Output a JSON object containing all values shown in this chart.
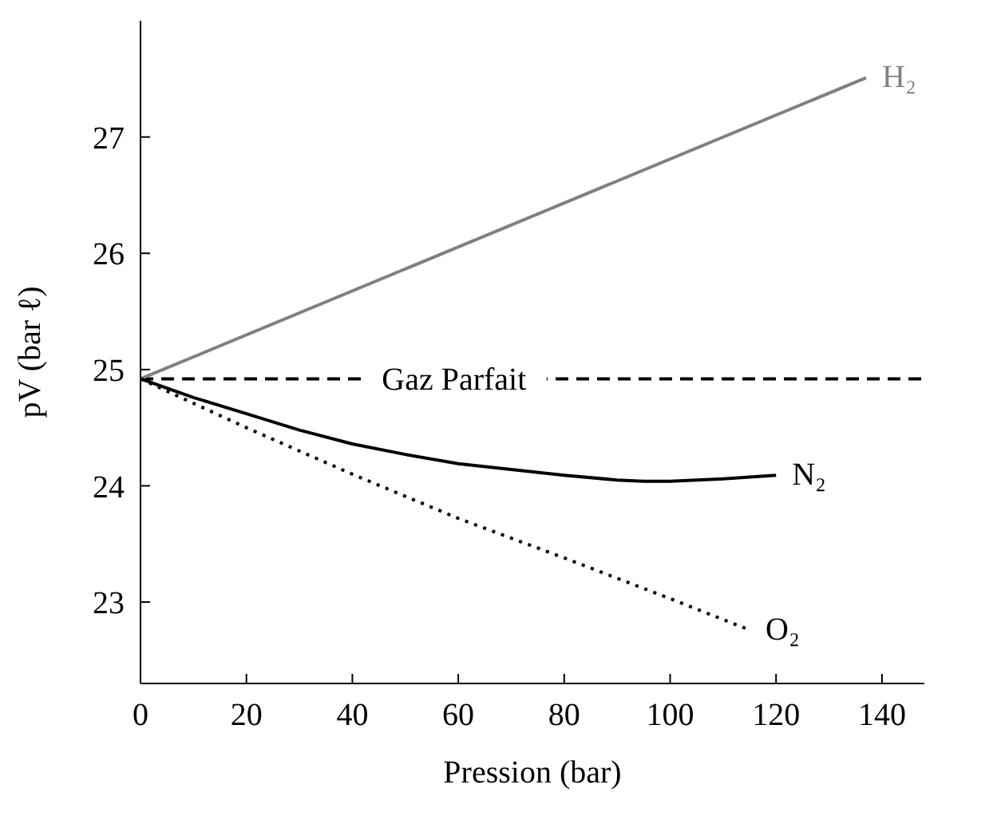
{
  "chart_data": {
    "type": "line",
    "xlabel": "Pression (bar)",
    "ylabel": "pV (bar ℓ)",
    "xlim": [
      0,
      148
    ],
    "ylim": [
      22.3,
      28
    ],
    "xticks": [
      0,
      20,
      40,
      60,
      80,
      100,
      120,
      140
    ],
    "yticks": [
      23,
      24,
      25,
      26,
      27
    ],
    "ref_lines": [
      {
        "axis": "y",
        "value": 24.92,
        "label": "Gaz Parfait",
        "color": "#000000",
        "line_style": "dashed"
      }
    ],
    "series": [
      {
        "name": "H₂",
        "color": "#808080",
        "line_style": "solid",
        "x": [
          0,
          137
        ],
        "values": [
          24.92,
          27.51
        ]
      },
      {
        "name": "N₂",
        "color": "#000000",
        "line_style": "solid",
        "x": [
          0,
          10,
          20,
          30,
          40,
          50,
          60,
          70,
          80,
          90,
          95,
          100,
          110,
          120
        ],
        "values": [
          24.92,
          24.76,
          24.62,
          24.48,
          24.36,
          24.27,
          24.19,
          24.14,
          24.09,
          24.05,
          24.04,
          24.04,
          24.06,
          24.09
        ]
      },
      {
        "name": "O₂",
        "color": "#000000",
        "line_style": "dotted",
        "x": [
          0,
          20,
          40,
          60,
          80,
          100,
          115
        ],
        "values": [
          24.92,
          24.5,
          24.1,
          23.72,
          23.38,
          23.03,
          22.76
        ]
      }
    ]
  }
}
